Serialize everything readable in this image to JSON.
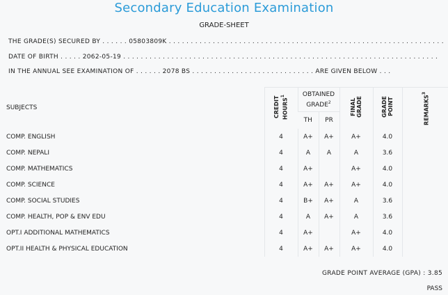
{
  "header": {
    "title": "Secondary Education Examination",
    "subtitle": "GRADE-SHEET"
  },
  "info": {
    "secured_by": "THE GRADE(S) SECURED BY . . . . . . 05803809K . . . . . . . . . . . . . . . . . . . . . . . . . . . . . . . . . . . . . . . . . . . . . . . . . . . . . . . . . . . . . . .",
    "dob": "DATE OF BIRTH . . . . . 2062-05-19 . . . . . . . . . . . . . . . . . . . . . . . . . . . . . . . . . . . . . . . . . . . . . . . . . . . . . . . . . . . . . . . . . . . . . . . .",
    "exam": "IN THE ANNUAL SEE EXAMINATION OF . . . . . . 2078 BS . . . . . . . . . . . . . . . . . . . . . . . . . . . . ARE GIVEN BELOW . . ."
  },
  "table": {
    "headers": {
      "subjects": "SUBJECTS",
      "credit_hours_line1": "CREDIT",
      "credit_hours_line2": "HOURS",
      "credit_sup": "1",
      "obtained_line1": "OBTAINED",
      "obtained_line2": "GRADE",
      "obtained_sup": "2",
      "th": "TH",
      "pr": "PR",
      "final_line1": "FINAL",
      "final_line2": "GRADE",
      "grade_line1": "GRADE",
      "grade_line2": "POINT",
      "remarks": "REMARKS",
      "remarks_sup": "3"
    },
    "rows": [
      {
        "subject": "COMP. ENGLISH",
        "credit": "4",
        "th": "A+",
        "pr": "A+",
        "final": "A+",
        "point": "4.0",
        "remarks": ""
      },
      {
        "subject": "COMP. NEPALI",
        "credit": "4",
        "th": "A",
        "pr": "A",
        "final": "A",
        "point": "3.6",
        "remarks": ""
      },
      {
        "subject": "COMP. MATHEMATICS",
        "credit": "4",
        "th": "A+",
        "pr": "",
        "final": "A+",
        "point": "4.0",
        "remarks": ""
      },
      {
        "subject": "COMP. SCIENCE",
        "credit": "4",
        "th": "A+",
        "pr": "A+",
        "final": "A+",
        "point": "4.0",
        "remarks": ""
      },
      {
        "subject": "COMP. SOCIAL STUDIES",
        "credit": "4",
        "th": "B+",
        "pr": "A+",
        "final": "A",
        "point": "3.6",
        "remarks": ""
      },
      {
        "subject": "COMP. HEALTH, POP & ENV EDU",
        "credit": "4",
        "th": "A",
        "pr": "A+",
        "final": "A",
        "point": "3.6",
        "remarks": ""
      },
      {
        "subject": "OPT.I ADDITIONAL MATHEMATICS",
        "credit": "4",
        "th": "A+",
        "pr": "",
        "final": "A+",
        "point": "4.0",
        "remarks": ""
      },
      {
        "subject": "OPT.II HEALTH & PHYSICAL EDUCATION",
        "credit": "4",
        "th": "A+",
        "pr": "A+",
        "final": "A+",
        "point": "4.0",
        "remarks": ""
      }
    ]
  },
  "summary": {
    "gpa": "GRADE POINT AVERAGE (GPA) : 3.85",
    "result": "PASS"
  }
}
